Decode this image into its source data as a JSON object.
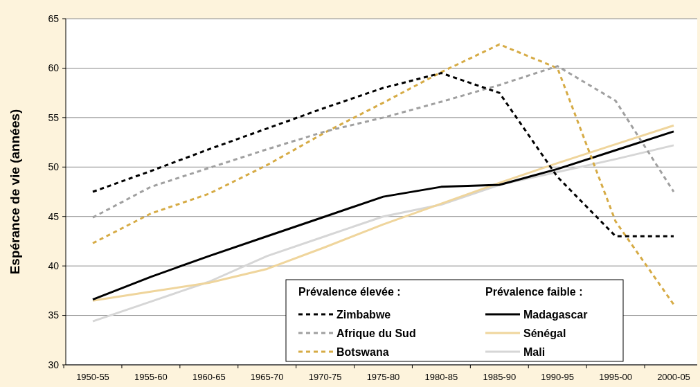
{
  "chart_data": {
    "type": "line",
    "ylabel": "Espérance de vie (années)",
    "categories": [
      "1950-55",
      "1955-60",
      "1960-65",
      "1965-70",
      "1970-75",
      "1975-80",
      "1980-85",
      "1985-90",
      "1990-95",
      "1995-00",
      "2000-05"
    ],
    "ylim": [
      30,
      65
    ],
    "yticks": [
      30,
      35,
      40,
      45,
      50,
      55,
      60,
      65
    ],
    "grid": "y",
    "legend": "bottom right",
    "annotations": [
      "Prévalence élevée :",
      "Prévalence faible :"
    ],
    "series": [
      {
        "name": "Zimbabwe",
        "color": "#000000",
        "line_style": "dashed",
        "values": [
          47.5,
          49.6,
          51.8,
          53.9,
          56.0,
          58.0,
          59.5,
          57.5,
          49.0,
          43.0,
          43.0
        ]
      },
      {
        "name": "Afrique du Sud",
        "color": "#a0a0a0",
        "line_style": "dashed",
        "values": [
          44.9,
          48.0,
          49.9,
          51.8,
          53.6,
          55.0,
          56.6,
          58.3,
          60.2,
          56.7,
          47.5
        ]
      },
      {
        "name": "Botswana",
        "color": "#d6ab45",
        "line_style": "dashed",
        "values": [
          42.3,
          45.3,
          47.3,
          50.2,
          53.5,
          56.5,
          59.6,
          62.4,
          60.0,
          44.5,
          36.1
        ]
      },
      {
        "name": "Madagascar",
        "color": "#000000",
        "line_style": "solid",
        "values": [
          36.6,
          38.9,
          41.0,
          43.0,
          45.0,
          47.0,
          48.0,
          48.2,
          49.8,
          51.7,
          53.6
        ]
      },
      {
        "name": "Sénégal",
        "color": "#efd59c",
        "line_style": "solid",
        "values": [
          36.5,
          37.4,
          38.3,
          39.7,
          41.9,
          44.2,
          46.3,
          48.4,
          50.4,
          52.3,
          54.2
        ]
      },
      {
        "name": "Mali",
        "color": "#d6d6d6",
        "line_style": "solid",
        "values": [
          34.4,
          36.4,
          38.4,
          41.0,
          43.0,
          45.0,
          46.2,
          48.2,
          49.5,
          50.8,
          52.2
        ]
      }
    ]
  }
}
